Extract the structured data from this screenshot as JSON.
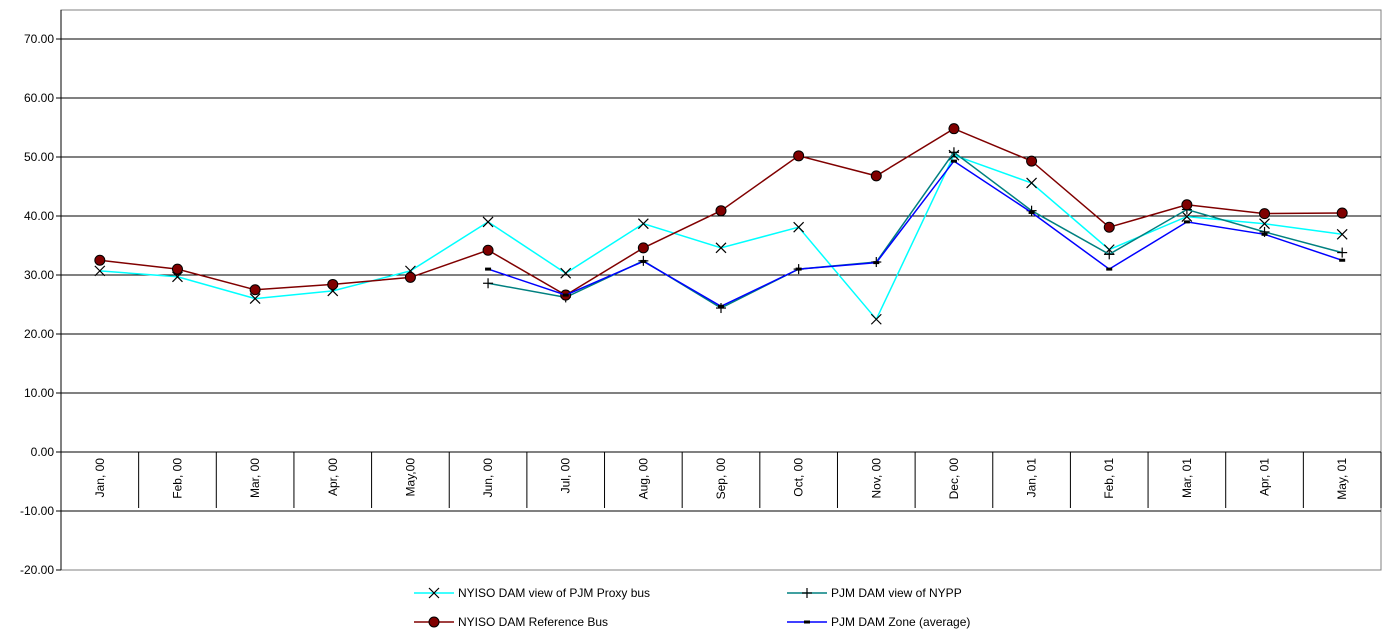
{
  "chart_data": {
    "type": "line",
    "categories": [
      "Jan, 00",
      "Feb, 00",
      "Mar, 00",
      "Apr, 00",
      "May,00",
      "Jun, 00",
      "Jul, 00",
      "Aug, 00",
      "Sep, 00",
      "Oct, 00",
      "Nov, 00",
      "Dec, 00",
      "Jan, 01",
      "Feb, 01",
      "Mar, 01",
      "Apr, 01",
      "May, 01"
    ],
    "y_ticks": [
      "70.00",
      "60.00",
      "50.00",
      "40.00",
      "30.00",
      "20.00",
      "10.00",
      "0.00",
      "-10.00",
      "-20.00"
    ],
    "ylim": [
      -20,
      75
    ],
    "grid": true,
    "legend_position": "bottom",
    "series": [
      {
        "name": "NYISO DAM view of PJM Proxy bus",
        "color": "#00FFFF",
        "marker": "x",
        "values": [
          30.7,
          29.7,
          26.0,
          27.3,
          30.7,
          39.0,
          30.3,
          38.7,
          34.6,
          38.1,
          22.5,
          50.3,
          45.6,
          34.3,
          39.9,
          38.7,
          36.9
        ]
      },
      {
        "name": "PJM DAM view of NYPP",
        "color": "#008080",
        "marker": "plus",
        "values": [
          null,
          null,
          null,
          null,
          null,
          28.6,
          26.2,
          32.4,
          24.4,
          31.0,
          32.2,
          50.8,
          40.9,
          33.5,
          41.1,
          37.3,
          33.8
        ]
      },
      {
        "name": "NYISO DAM Reference Bus",
        "color": "#800000",
        "marker": "circle",
        "values": [
          32.5,
          31.0,
          27.5,
          28.4,
          29.6,
          34.2,
          26.6,
          34.6,
          40.9,
          50.2,
          46.8,
          54.8,
          49.3,
          38.1,
          41.9,
          40.4,
          40.5
        ]
      },
      {
        "name": "PJM DAM Zone (average)",
        "color": "#0000FF",
        "marker": "dash",
        "values": [
          null,
          null,
          null,
          null,
          null,
          31.0,
          26.6,
          32.3,
          24.7,
          31.0,
          32.1,
          49.3,
          40.6,
          31.0,
          39.0,
          36.9,
          32.5
        ]
      }
    ]
  }
}
